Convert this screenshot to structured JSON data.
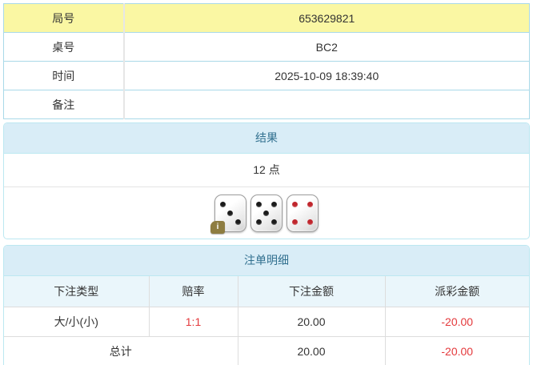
{
  "colors": {
    "highlight_yellow": "#faf7a3",
    "panel_header_bg": "#d9edf7",
    "panel_border": "#bce8f1",
    "panel_header_text": "#31708f",
    "table_border_blue": "#a9d9e8",
    "negative_red": "#e4393c",
    "dice_pip_black": "#1b1b1b",
    "dice_pip_red": "#c0262d"
  },
  "info_table": {
    "rows": [
      {
        "label": "局号",
        "value": "653629821"
      },
      {
        "label": "桌号",
        "value": "BC2"
      },
      {
        "label": "时间",
        "value": "2025-10-09 18:39:40"
      },
      {
        "label": "备注",
        "value": ""
      }
    ]
  },
  "result_panel": {
    "title": "结果",
    "points": "12 点",
    "dice": [
      {
        "value": 3,
        "color": "black"
      },
      {
        "value": 5,
        "color": "black"
      },
      {
        "value": 4,
        "color": "red"
      }
    ],
    "info_badge": "i"
  },
  "bets_panel": {
    "title": "注单明细",
    "columns": [
      "下注类型",
      "赔率",
      "下注金额",
      "派彩金额"
    ],
    "rows": [
      {
        "type": "大/小(小)",
        "odds": "1:1",
        "bet": "20.00",
        "payout": "-20.00"
      }
    ],
    "total": {
      "label": "总计",
      "bet": "20.00",
      "payout": "-20.00"
    }
  }
}
